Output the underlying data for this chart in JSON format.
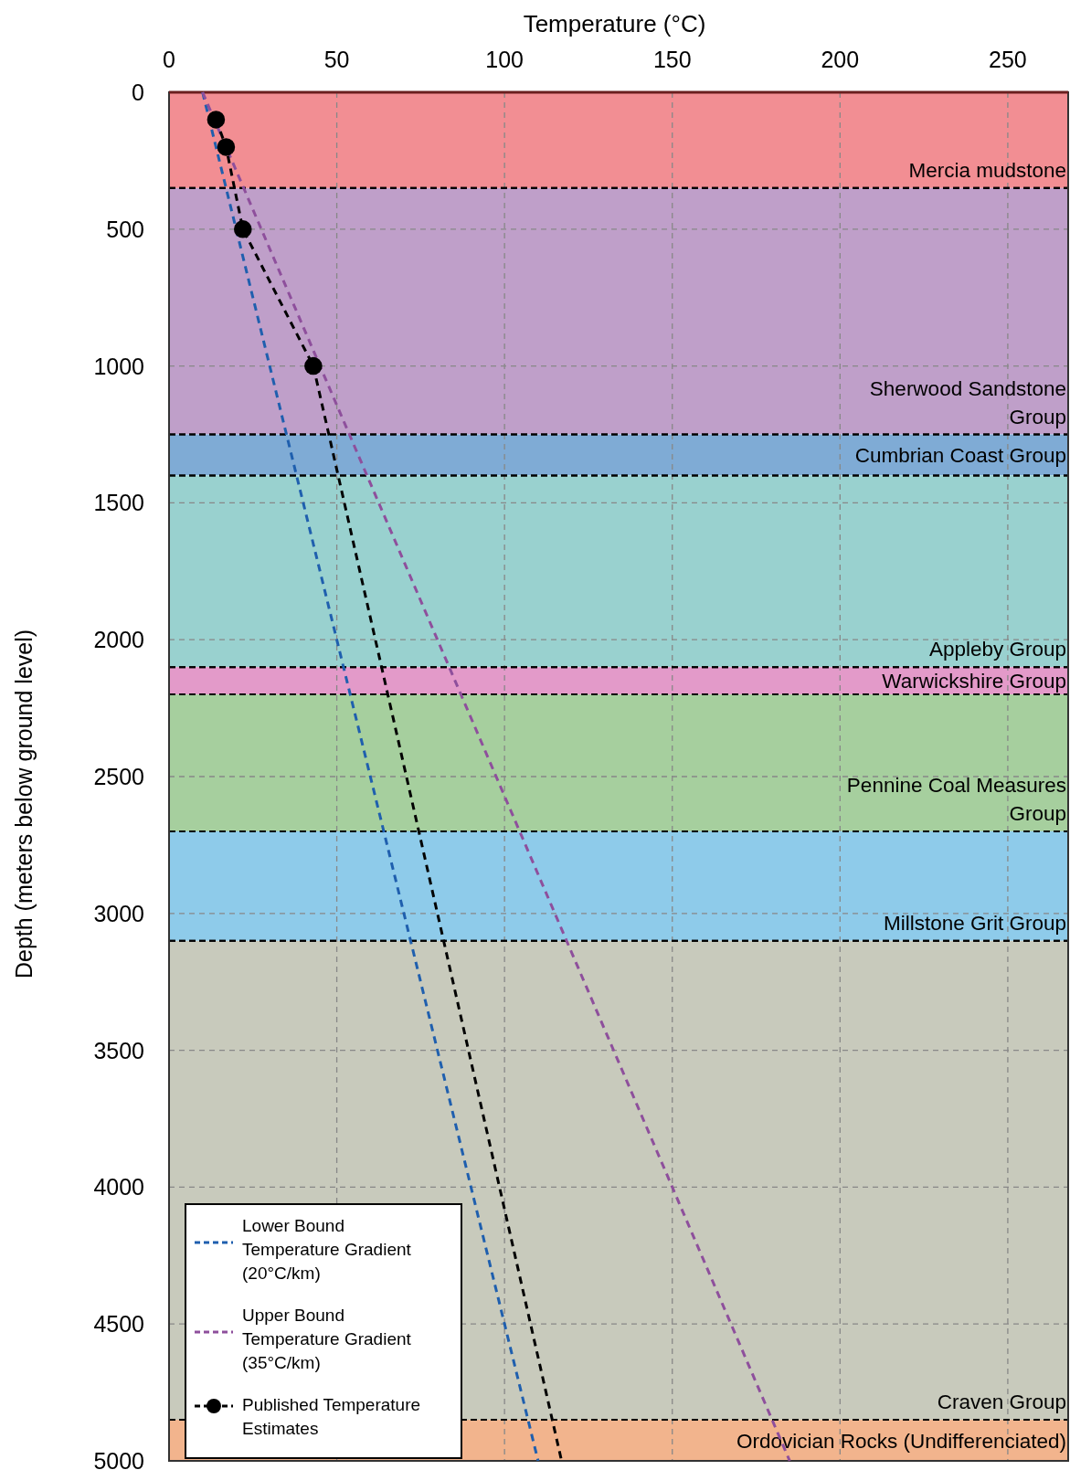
{
  "chart_data": {
    "type": "line",
    "xlabel": "Temperature (°C)",
    "ylabel": "Depth (meters below ground level)",
    "xlim": [
      0,
      268
    ],
    "xticks": [
      0,
      50,
      100,
      150,
      200,
      250
    ],
    "ylim": [
      5000,
      0
    ],
    "yticks": [
      0,
      500,
      1000,
      1500,
      2000,
      2500,
      3000,
      3500,
      4000,
      4500,
      5000
    ],
    "grid": true,
    "legend": "bottom left",
    "line_style": "dashed",
    "bands": [
      {
        "axis": "y",
        "from": 0,
        "to": 350,
        "label": "Mercia mudstone",
        "color": "#f28e93"
      },
      {
        "axis": "y",
        "from": 350,
        "to": 1250,
        "label": "Sherwood Sandstone\nGroup",
        "color": "#bf9fc9"
      },
      {
        "axis": "y",
        "from": 1250,
        "to": 1400,
        "label": "Cumbrian Coast Group",
        "color": "#7fabd5"
      },
      {
        "axis": "y",
        "from": 1400,
        "to": 2100,
        "label": "Appleby Group",
        "color": "#99d1cf"
      },
      {
        "axis": "y",
        "from": 2100,
        "to": 2200,
        "label": "Warwickshire Group",
        "color": "#e39ac9"
      },
      {
        "axis": "y",
        "from": 2200,
        "to": 2700,
        "label": "Pennine Coal Measures\nGroup",
        "color": "#a6cf9e"
      },
      {
        "axis": "y",
        "from": 2700,
        "to": 3100,
        "label": "Millstone Grit Group",
        "color": "#8ecbea"
      },
      {
        "axis": "y",
        "from": 3100,
        "to": 4850,
        "label": "Craven Group",
        "color": "#c8cabc"
      },
      {
        "axis": "y",
        "from": 4850,
        "to": 5000,
        "label": "Ordovician Rocks (Undifferenciated)",
        "color": "#f2b48d"
      }
    ],
    "series": [
      {
        "name": "Lower Bound Temperature Gradient (20°C/km)",
        "color": "#1f5fae",
        "x": [
          10,
          110
        ],
        "values": [
          0,
          5000
        ],
        "marker": "none"
      },
      {
        "name": "Upper Bound Temperature Gradient (35°C/km)",
        "color": "#8e4f9c",
        "x": [
          10,
          185
        ],
        "values": [
          0,
          5000
        ],
        "marker": "none"
      },
      {
        "name": "Published Temperature Estimates",
        "color": "#000000",
        "x": [
          14,
          17,
          22,
          43
        ],
        "values": [
          100,
          200,
          500,
          1000
        ],
        "marker": "circle"
      },
      {
        "color": "#000000",
        "x": [
          43,
          117
        ],
        "values": [
          1000,
          5000
        ],
        "marker": "none"
      }
    ]
  }
}
